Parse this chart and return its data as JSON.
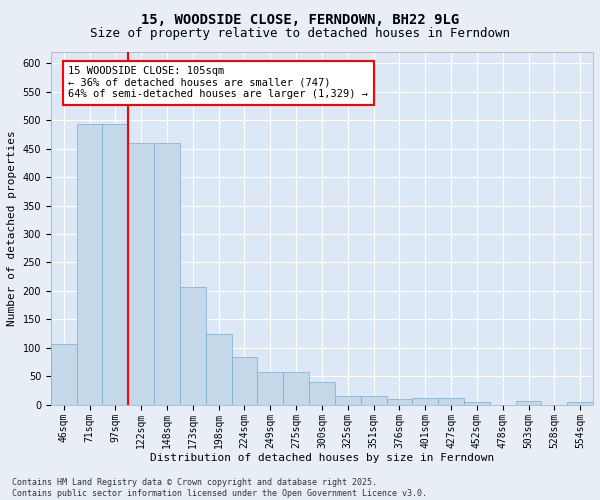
{
  "title": "15, WOODSIDE CLOSE, FERNDOWN, BH22 9LG",
  "subtitle": "Size of property relative to detached houses in Ferndown",
  "xlabel": "Distribution of detached houses by size in Ferndown",
  "ylabel": "Number of detached properties",
  "footer_line1": "Contains HM Land Registry data © Crown copyright and database right 2025.",
  "footer_line2": "Contains public sector information licensed under the Open Government Licence v3.0.",
  "categories": [
    "46sqm",
    "71sqm",
    "97sqm",
    "122sqm",
    "148sqm",
    "173sqm",
    "198sqm",
    "224sqm",
    "249sqm",
    "275sqm",
    "300sqm",
    "325sqm",
    "351sqm",
    "376sqm",
    "401sqm",
    "427sqm",
    "452sqm",
    "478sqm",
    "503sqm",
    "528sqm",
    "554sqm"
  ],
  "values": [
    106,
    493,
    493,
    460,
    460,
    207,
    125,
    83,
    57,
    57,
    40,
    15,
    15,
    10,
    11,
    11,
    4,
    0,
    6,
    0,
    5
  ],
  "bar_color": "#c5d8ea",
  "bar_edge_color": "#7aaece",
  "vline_x": 2.5,
  "vline_color": "red",
  "annotation_text": "15 WOODSIDE CLOSE: 105sqm\n← 36% of detached houses are smaller (747)\n64% of semi-detached houses are larger (1,329) →",
  "annotation_box_color": "white",
  "annotation_box_edge_color": "red",
  "ylim": [
    0,
    620
  ],
  "yticks": [
    0,
    50,
    100,
    150,
    200,
    250,
    300,
    350,
    400,
    450,
    500,
    550,
    600
  ],
  "background_color": "#e8eef6",
  "plot_background": "#dce8f5",
  "grid_color": "white",
  "title_fontsize": 10,
  "subtitle_fontsize": 9,
  "axis_label_fontsize": 8,
  "tick_fontsize": 7,
  "annotation_fontsize": 7.5,
  "footer_fontsize": 6
}
